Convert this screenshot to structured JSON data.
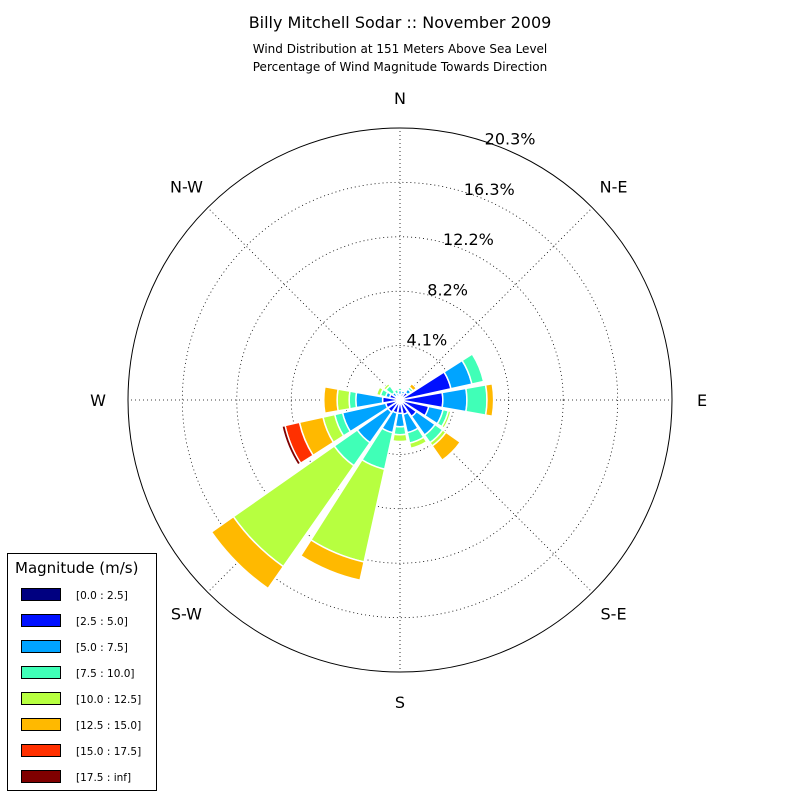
{
  "chart_data": {
    "type": "windrose",
    "title": "Billy Mitchell Sodar :: November 2009",
    "subtitle_lines": [
      "Wind Distribution at 151 Meters Above Sea Level",
      "Percentage of Wind Magnitude Towards Direction"
    ],
    "direction_labels": [
      "N",
      "N-E",
      "E",
      "S-E",
      "S",
      "S-W",
      "W",
      "N-W"
    ],
    "radial_tick_labels": [
      "4.1%",
      "8.2%",
      "12.2%",
      "16.3%",
      "20.3%"
    ],
    "radial_ticks": [
      4.07,
      8.13,
      12.2,
      16.27,
      20.33
    ],
    "r_max": 20.33,
    "direction_bins_deg": [
      0,
      22.5,
      45,
      67.5,
      90,
      112.5,
      135,
      157.5,
      180,
      202.5,
      225,
      247.5,
      270,
      292.5,
      315,
      337.5
    ],
    "bin_width_deg": 20,
    "legend_title": "Magnitude (m/s)",
    "series": [
      {
        "name": "[0.0 : 2.5]",
        "color": "#000080",
        "values": [
          0.1,
          0.1,
          0.2,
          0.2,
          0.2,
          0.2,
          0.2,
          0.2,
          0.2,
          0.2,
          0.2,
          0.2,
          0.2,
          0.2,
          0.1,
          0.1
        ]
      },
      {
        "name": "[2.5 : 5.0]",
        "color": "#0010ff",
        "values": [
          0.3,
          0.4,
          0.5,
          3.7,
          3.0,
          2.0,
          1.3,
          0.9,
          0.8,
          0.8,
          0.9,
          0.9,
          1.1,
          0.6,
          0.3,
          0.2
        ]
      },
      {
        "name": "[5.0 : 7.5]",
        "color": "#00a4ff",
        "values": [
          0.3,
          0.2,
          0.3,
          1.6,
          1.8,
          1.1,
          1.7,
          1.4,
          1.0,
          1.5,
          2.8,
          3.3,
          2.0,
          0.3,
          0.3,
          0.2
        ]
      },
      {
        "name": "[7.5 : 10.0]",
        "color": "#40ffb7",
        "values": [
          0.2,
          0.1,
          0.2,
          0.9,
          1.5,
          0.4,
          0.7,
          0.8,
          0.6,
          2.8,
          2.1,
          0.6,
          0.5,
          0.4,
          0.6,
          0.3
        ]
      },
      {
        "name": "[10.0 : 12.5]",
        "color": "#b7ff40",
        "values": [
          0.1,
          0.0,
          0.0,
          0.0,
          0.0,
          0.2,
          0.3,
          0.4,
          0.5,
          7.1,
          9.2,
          0.9,
          0.9,
          0.3,
          0.2,
          0.0
        ]
      },
      {
        "name": "[12.5 : 15.0]",
        "color": "#ffb900",
        "values": [
          0.0,
          0.1,
          0.3,
          0.0,
          0.5,
          0.0,
          1.3,
          0.0,
          0.0,
          1.4,
          2.0,
          1.8,
          1.0,
          0.0,
          0.0,
          0.0
        ]
      },
      {
        "name": "[15.0 : 17.5]",
        "color": "#ff3000",
        "values": [
          0,
          0,
          0,
          0,
          0,
          0,
          0,
          0,
          0,
          0,
          0,
          1.1,
          0,
          0,
          0,
          0
        ]
      },
      {
        "name": "[17.5 : inf]",
        "color": "#800000",
        "values": [
          0,
          0,
          0,
          0,
          0,
          0,
          0,
          0,
          0,
          0,
          0,
          0.25,
          0,
          0,
          0,
          0
        ]
      }
    ]
  }
}
